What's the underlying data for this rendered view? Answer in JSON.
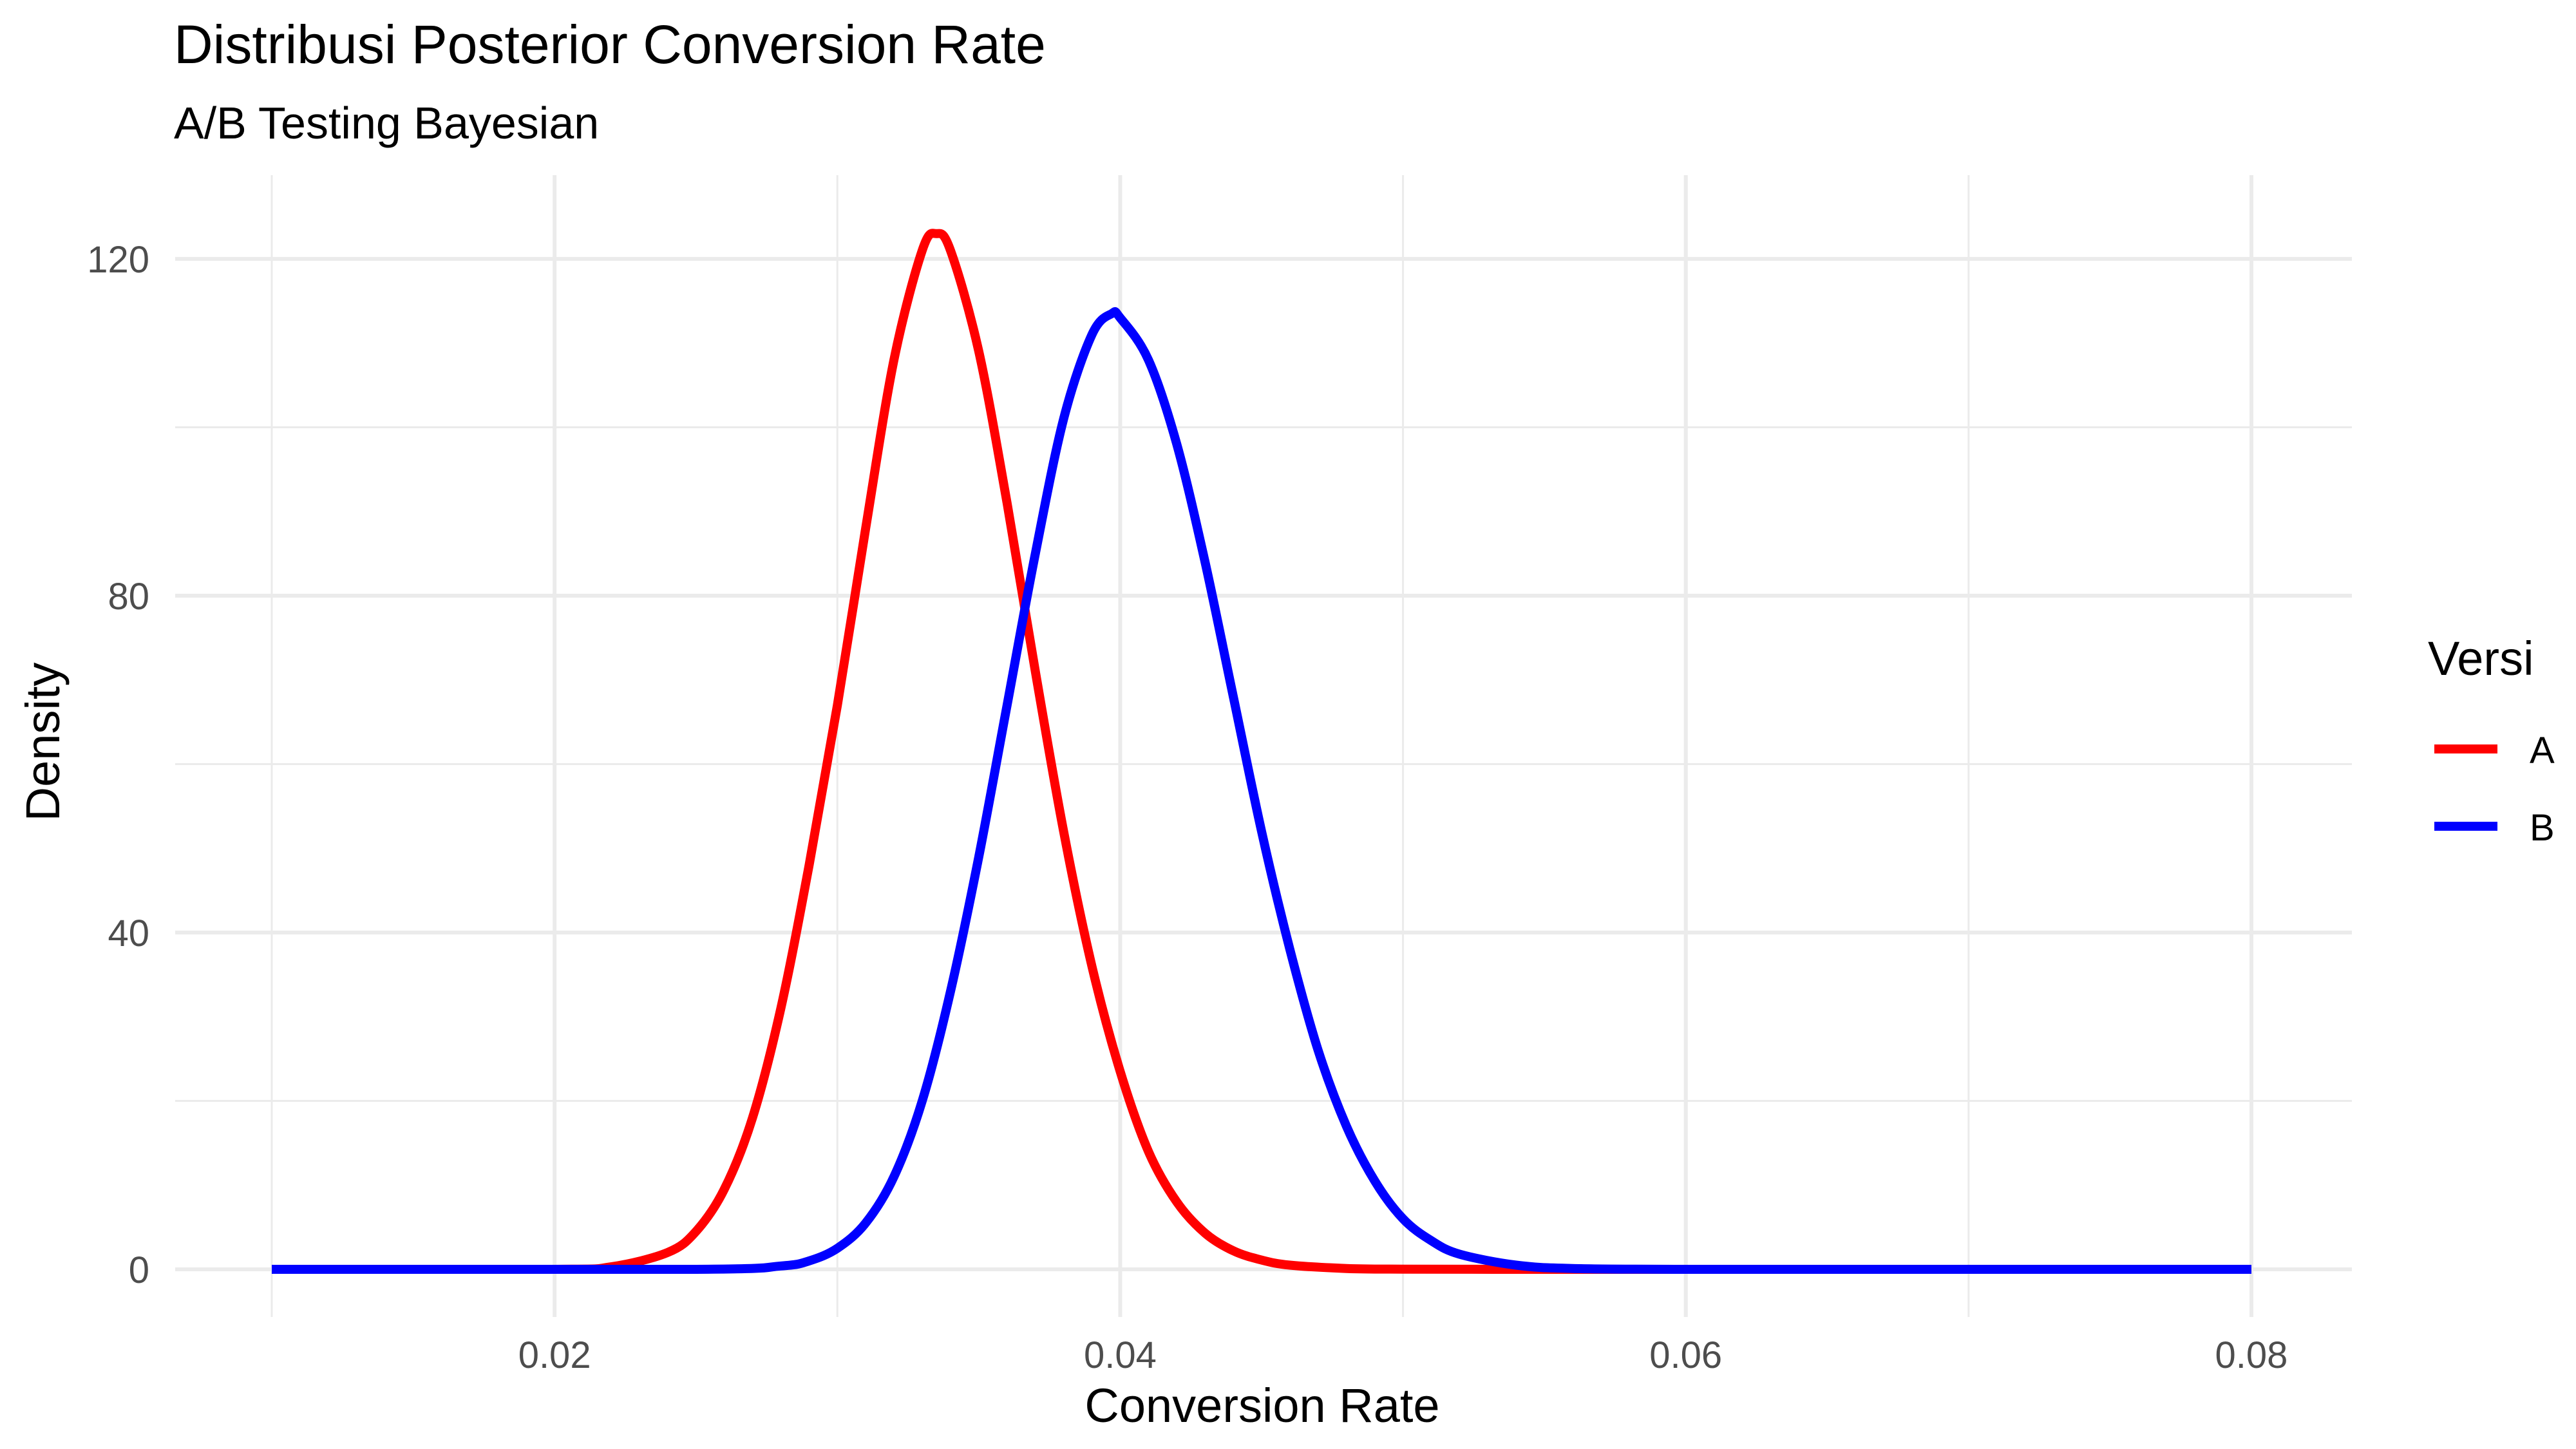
{
  "chart_data": {
    "type": "line",
    "title": "Distribusi Posterior Conversion Rate",
    "subtitle": "A/B Testing Bayesian",
    "xlabel": "Conversion Rate",
    "ylabel": "Density",
    "xlim": [
      0.01,
      0.08
    ],
    "ylim": [
      0,
      125
    ],
    "x_ticks": [
      0.02,
      0.04,
      0.06,
      0.08
    ],
    "x_tick_labels": [
      "0.02",
      "0.04",
      "0.06",
      "0.08"
    ],
    "y_ticks": [
      0,
      40,
      80,
      120
    ],
    "y_tick_labels": [
      "0",
      "40",
      "80",
      "120"
    ],
    "grid": true,
    "legend": {
      "title": "Versi",
      "position": "right"
    },
    "series": [
      {
        "name": "A",
        "color": "#FF0000",
        "x": [
          0.01,
          0.02,
          0.022,
          0.024,
          0.025,
          0.026,
          0.027,
          0.028,
          0.029,
          0.03,
          0.031,
          0.032,
          0.033,
          0.0335,
          0.034,
          0.035,
          0.036,
          0.037,
          0.038,
          0.039,
          0.04,
          0.041,
          0.042,
          0.043,
          0.044,
          0.045,
          0.046,
          0.048,
          0.05,
          0.055,
          0.06,
          0.07,
          0.08
        ],
        "y": [
          0,
          0,
          0.3,
          2.0,
          4.5,
          9.5,
          18,
          31,
          48,
          67,
          88,
          108,
          121,
          123,
          121,
          109,
          91,
          71,
          52,
          36,
          23.5,
          14,
          8,
          4.3,
          2.2,
          1.1,
          0.5,
          0.1,
          0.02,
          0,
          0,
          0,
          0
        ]
      },
      {
        "name": "B",
        "color": "#0000FF",
        "x": [
          0.01,
          0.025,
          0.028,
          0.029,
          0.03,
          0.031,
          0.032,
          0.033,
          0.034,
          0.035,
          0.036,
          0.037,
          0.038,
          0.039,
          0.0397,
          0.04,
          0.041,
          0.042,
          0.043,
          0.044,
          0.045,
          0.046,
          0.047,
          0.048,
          0.049,
          0.05,
          0.051,
          0.052,
          0.054,
          0.056,
          0.06,
          0.07,
          0.08
        ],
        "y": [
          0,
          0,
          0.4,
          1.0,
          2.5,
          5.5,
          11,
          20,
          33,
          49,
          67,
          85,
          101,
          111,
          113.5,
          113,
          108,
          98,
          84,
          68,
          52,
          38,
          26,
          17,
          10.5,
          6,
          3.4,
          1.8,
          0.5,
          0.1,
          0,
          0,
          0
        ]
      }
    ]
  }
}
